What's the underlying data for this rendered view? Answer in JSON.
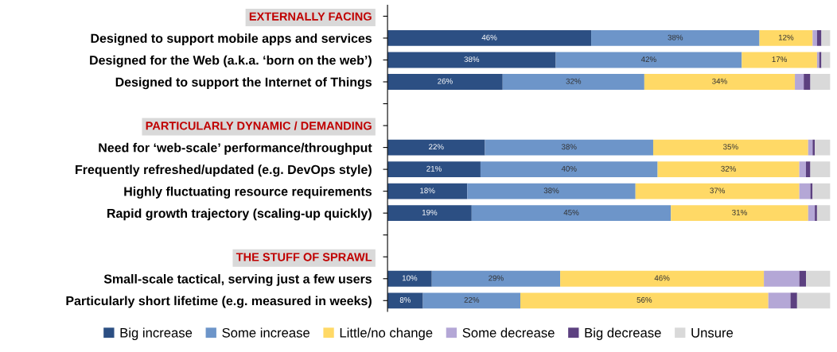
{
  "chart_data": {
    "type": "bar",
    "orientation": "horizontal",
    "stacked": true,
    "xlim": [
      0,
      100
    ],
    "tick_labels": "y",
    "grid": false,
    "legend": "bottom",
    "categories": [
      "EXTERNALLY FACING",
      "Designed to support mobile apps and services",
      "Designed for the Web (a.k.a. ‘born on the web’)",
      "Designed to support the Internet of Things",
      null,
      "PARTICULARLY DYNAMIC / DEMANDING",
      "Need for ‘web-scale’ performance/throughput",
      "Frequently refreshed/updated (e.g. DevOps style)",
      "Highly fluctuating resource requirements",
      "Rapid growth trajectory (scaling-up quickly)",
      null,
      "THE STUFF OF SPRAWL",
      "Small-scale tactical, serving just a few users",
      "Particularly short lifetime (e.g. measured in weeks)"
    ],
    "series": [
      {
        "name": "Big increase",
        "color": "#2c4f83",
        "values": [
          null,
          46,
          38,
          26,
          null,
          null,
          22,
          21,
          18,
          19,
          null,
          null,
          10,
          8
        ],
        "value_labels": [
          null,
          "46%",
          "38%",
          "26%",
          null,
          null,
          "22%",
          "21%",
          "18%",
          "19%",
          null,
          null,
          "10%",
          "8%"
        ]
      },
      {
        "name": "Some increase",
        "color": "#6d95c9",
        "values": [
          null,
          38,
          42,
          32,
          null,
          null,
          38,
          40,
          38,
          45,
          null,
          null,
          29,
          22
        ],
        "value_labels": [
          null,
          "38%",
          "42%",
          "32%",
          null,
          null,
          "38%",
          "40%",
          "38%",
          "45%",
          null,
          null,
          "29%",
          "22%"
        ]
      },
      {
        "name": "Little/no change",
        "color": "#ffd966",
        "values": [
          null,
          12,
          17,
          34,
          null,
          null,
          35,
          32,
          37,
          31,
          null,
          null,
          46,
          56
        ],
        "value_labels": [
          null,
          "12%",
          "17%",
          "34%",
          null,
          null,
          "35%",
          "32%",
          "37%",
          "31%",
          null,
          null,
          "46%",
          "56%"
        ]
      },
      {
        "name": "Some decrease",
        "color": "#b4a7d6",
        "values": [
          null,
          1,
          0.5,
          2,
          null,
          null,
          1,
          1.5,
          2.5,
          1.5,
          null,
          null,
          8,
          5
        ]
      },
      {
        "name": "Big decrease",
        "color": "#5c4080",
        "values": [
          null,
          1,
          0.5,
          1.5,
          null,
          null,
          0.5,
          1,
          0.5,
          0.5,
          null,
          null,
          1.5,
          1.5
        ]
      },
      {
        "name": "Unsure",
        "color": "#d9d9d9",
        "values": [
          null,
          2,
          2,
          4.5,
          null,
          null,
          3.5,
          4.5,
          4,
          3,
          null,
          null,
          5.5,
          7.5
        ]
      }
    ]
  }
}
